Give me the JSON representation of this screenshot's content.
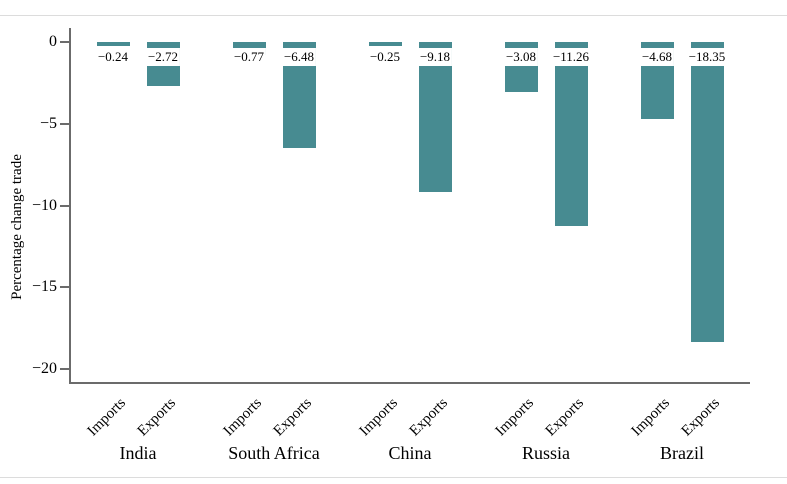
{
  "chart_data": {
    "type": "bar",
    "title": "",
    "xlabel": "",
    "ylabel": "Percentage change trade",
    "ylim": [
      -20,
      0
    ],
    "yticks": [
      0,
      -5,
      -10,
      -15,
      -20
    ],
    "ytick_labels": [
      "0",
      "−5",
      "−10",
      "−15",
      "−20"
    ],
    "categories": [
      "India",
      "South Africa",
      "China",
      "Russia",
      "Brazil"
    ],
    "series": [
      {
        "name": "Imports",
        "values": [
          -0.24,
          -0.77,
          -0.25,
          -3.08,
          -4.68
        ]
      },
      {
        "name": "Exports",
        "values": [
          -2.72,
          -6.48,
          -9.18,
          -11.26,
          -18.35
        ]
      }
    ],
    "bar_value_labels": [
      [
        "−0.24",
        "−0.77",
        "−0.25",
        "−3.08",
        "−4.68"
      ],
      [
        "−2.72",
        "−6.48",
        "−9.18",
        "−11.26",
        "−18.35"
      ]
    ],
    "grid": false,
    "legend_position": "none",
    "bar_color": "#478b91",
    "axis_color": "#6b6b6b",
    "value_label_color": "#000000",
    "value_label_background": "#ffffff"
  }
}
